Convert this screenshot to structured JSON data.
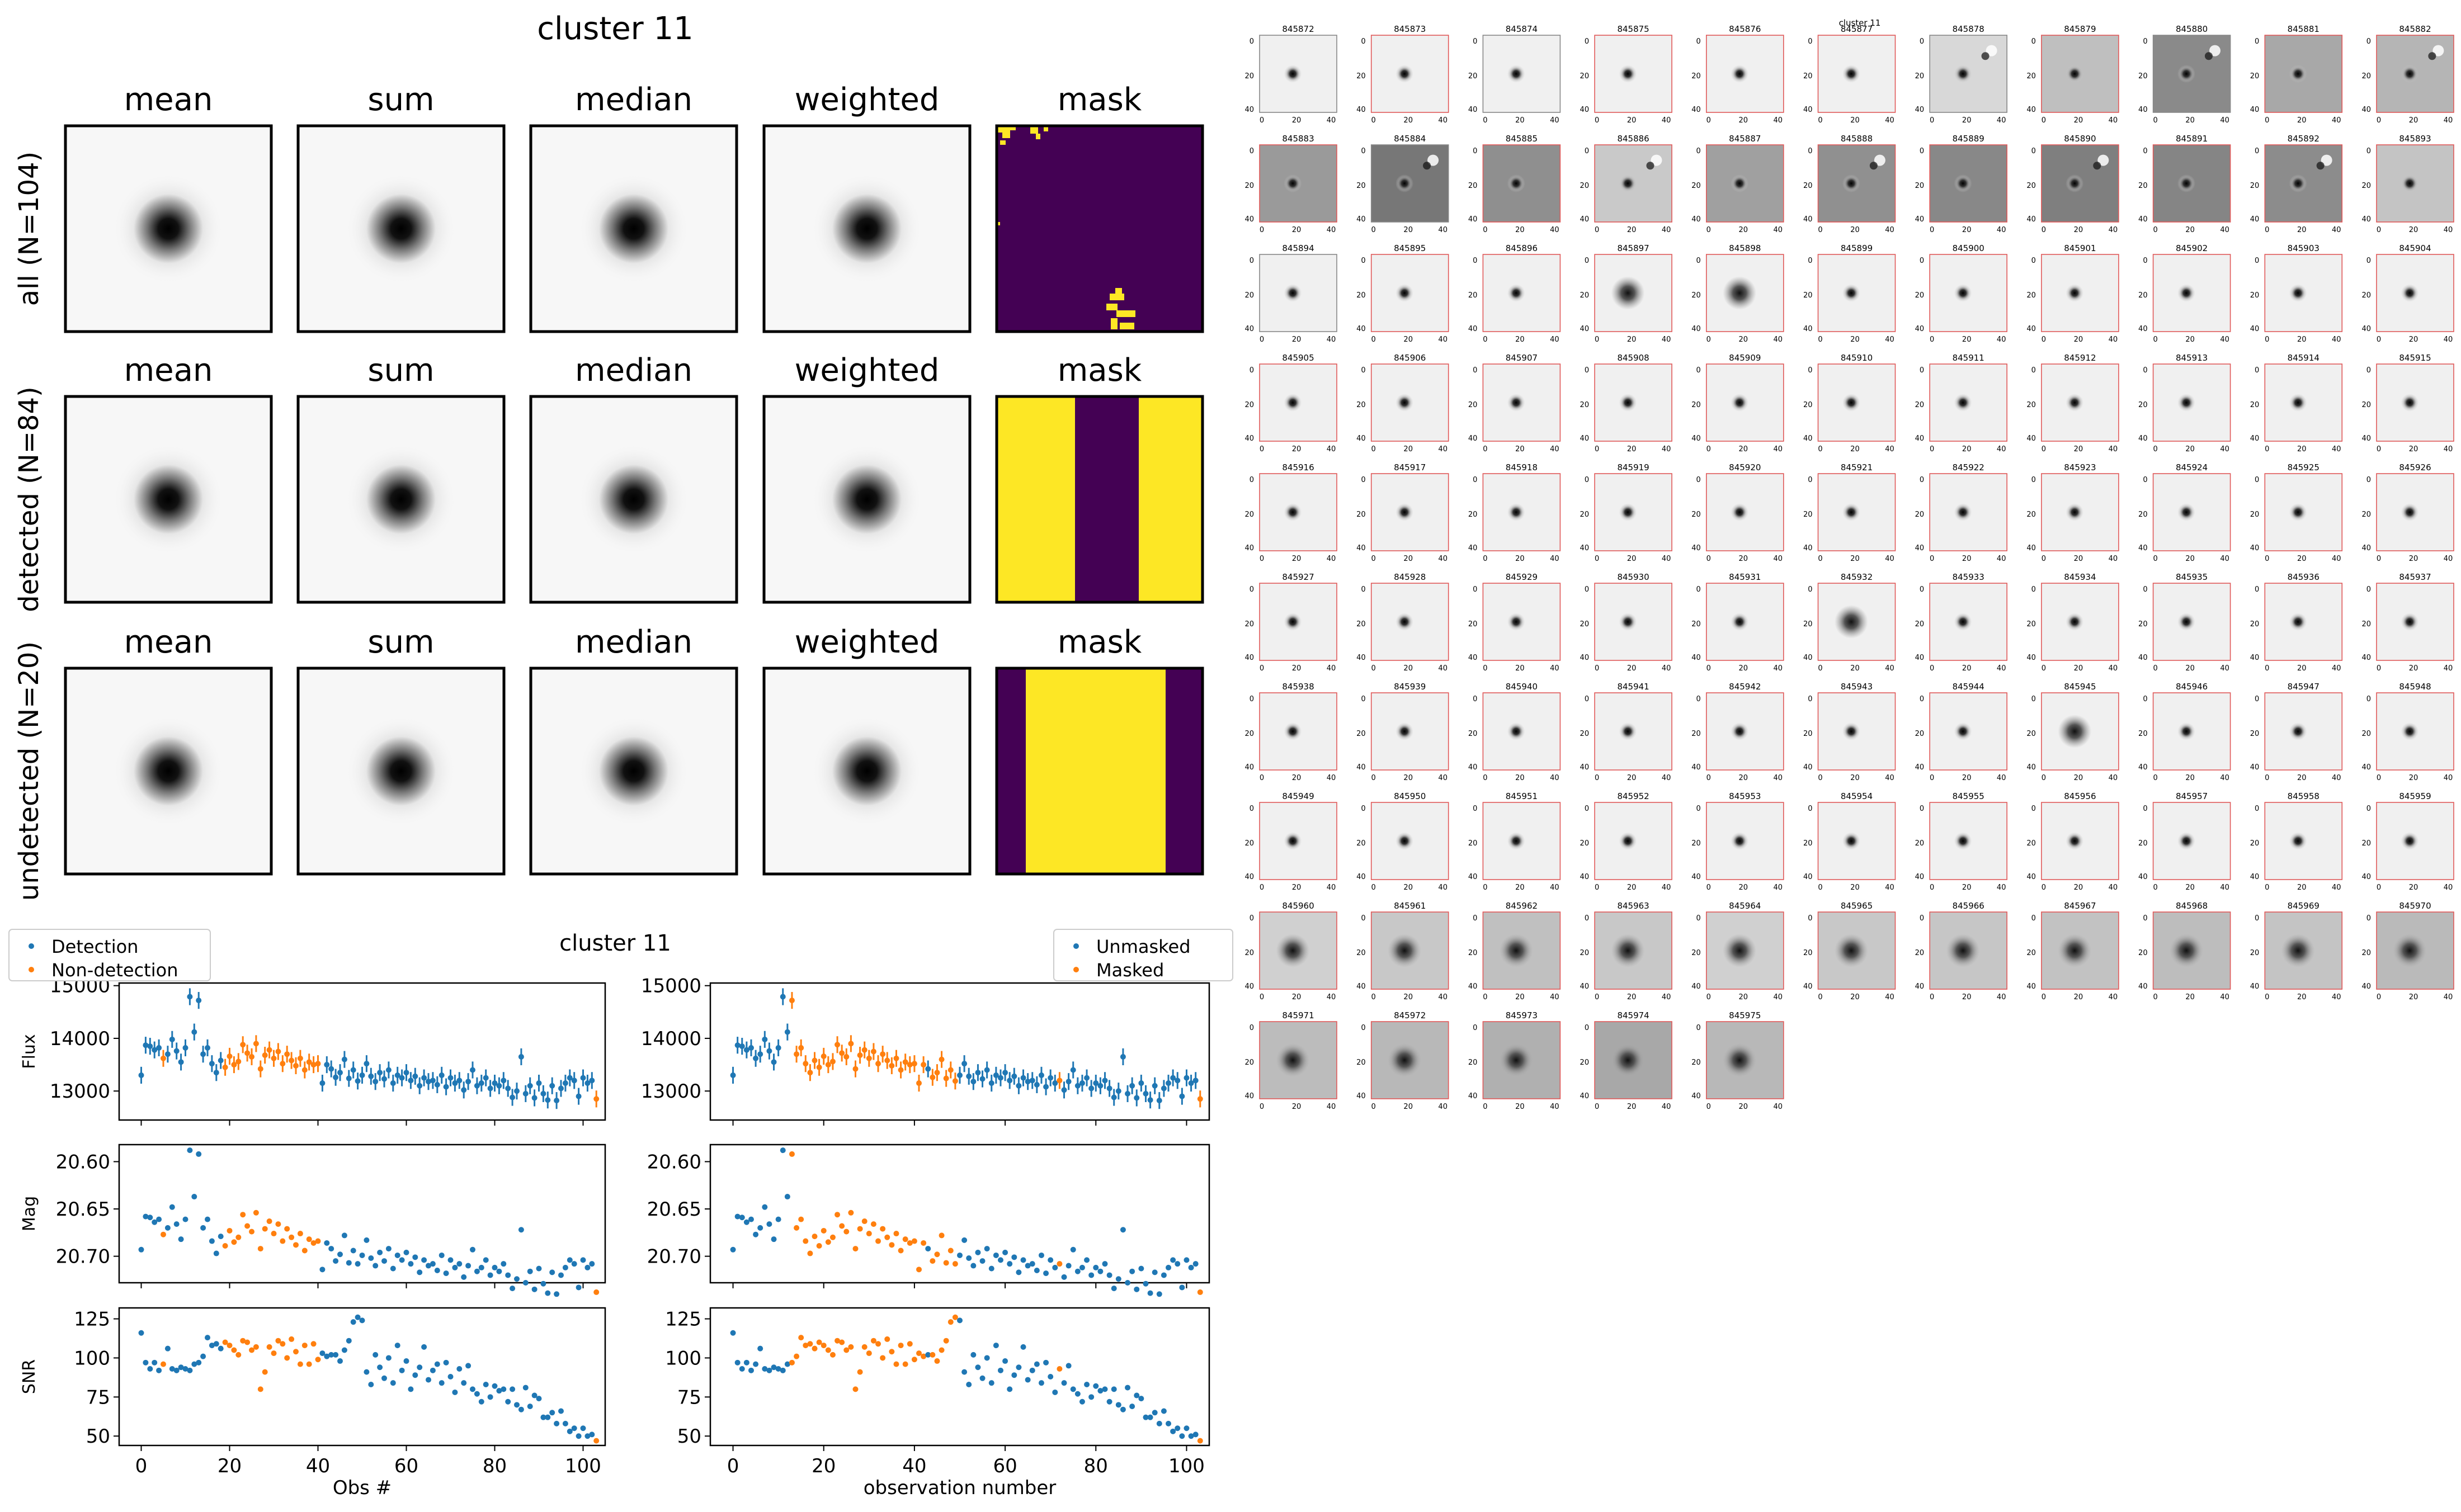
{
  "stacks": {
    "title": "cluster 11",
    "column_labels": [
      "mean",
      "sum",
      "median",
      "weighted",
      "mask"
    ],
    "row_labels": [
      "all (N=104)",
      "detected (N=84)",
      "undetected (N=20)"
    ]
  },
  "lightcurve": {
    "title": "cluster 11",
    "legend_left": [
      "Detection",
      "Non-detection"
    ],
    "legend_right": [
      "Unmasked",
      "Masked"
    ],
    "xlabel_left": "Obs #",
    "xlabel_right": "observation number",
    "ylabels": [
      "Flux",
      "Mag",
      "SNR"
    ]
  },
  "cutouts": {
    "header_label": "cluster 11",
    "ids": [
      "845872",
      "845873",
      "845874",
      "845875",
      "845876",
      "845877",
      "845878",
      "845879",
      "845880",
      "845881",
      "845882",
      "845883",
      "845884",
      "845885",
      "845886",
      "845887",
      "845888",
      "845889",
      "845890",
      "845891",
      "845892",
      "845893",
      "845894",
      "845895",
      "845896",
      "845897",
      "845898",
      "845899",
      "845900",
      "845901",
      "845902",
      "845903",
      "845904",
      "845905",
      "845906",
      "845907",
      "845908",
      "845909",
      "845910",
      "845911",
      "845912",
      "845913",
      "845914",
      "845915",
      "845916",
      "845917",
      "845918",
      "845919",
      "845920",
      "845921",
      "845922",
      "845923",
      "845924",
      "845925",
      "845926",
      "845927",
      "845928",
      "845929",
      "845930",
      "845931",
      "845932",
      "845933",
      "845934",
      "845935",
      "845936",
      "845937",
      "845938",
      "845939",
      "845940",
      "845941",
      "845942",
      "845943",
      "845944",
      "845945",
      "845946",
      "845947",
      "845948",
      "845949",
      "845950",
      "845951",
      "845952",
      "845953",
      "845954",
      "845955",
      "845956",
      "845957",
      "845958",
      "845959",
      "845960",
      "845961",
      "845962",
      "845963",
      "845964",
      "845965",
      "845966",
      "845967",
      "845968",
      "845969",
      "845970",
      "845971",
      "845972",
      "845973",
      "845974",
      "845975"
    ],
    "axis_ticks": [
      "0",
      "20",
      "40"
    ]
  },
  "chart_data": [
    {
      "type": "scatter",
      "title": "cluster 11",
      "ylabel": "Flux",
      "xlabel": "Obs #",
      "xlim": [
        -5,
        105
      ],
      "ylim": [
        12450,
        15050
      ],
      "yticks": [
        13000,
        14000,
        15000
      ],
      "xticks": [
        0,
        20,
        40,
        60,
        80,
        100
      ],
      "legend": [
        "Detection",
        "Non-detection"
      ],
      "x_orange_detected_split": [
        5,
        19,
        20,
        21,
        22,
        23,
        24,
        25,
        26,
        27,
        28,
        29,
        30,
        31,
        32,
        33,
        34,
        35,
        36,
        37,
        38,
        39,
        40,
        103
      ],
      "x_orange_masked_split": [
        13,
        14,
        15,
        16,
        17,
        18,
        19,
        20,
        21,
        22,
        23,
        24,
        25,
        26,
        27,
        28,
        29,
        30,
        31,
        32,
        33,
        34,
        35,
        36,
        37,
        38,
        39,
        40,
        41,
        42,
        44,
        45,
        46,
        47,
        48,
        49,
        72,
        103
      ],
      "x": [
        0,
        1,
        2,
        3,
        4,
        5,
        6,
        7,
        8,
        9,
        10,
        11,
        12,
        13,
        14,
        15,
        16,
        17,
        18,
        19,
        20,
        21,
        22,
        23,
        24,
        25,
        26,
        27,
        28,
        29,
        30,
        31,
        32,
        33,
        34,
        35,
        36,
        37,
        38,
        39,
        40,
        41,
        42,
        43,
        44,
        45,
        46,
        47,
        48,
        49,
        50,
        51,
        52,
        53,
        54,
        55,
        56,
        57,
        58,
        59,
        60,
        61,
        62,
        63,
        64,
        65,
        66,
        67,
        68,
        69,
        70,
        71,
        72,
        73,
        74,
        75,
        76,
        77,
        78,
        79,
        80,
        81,
        82,
        83,
        84,
        85,
        86,
        87,
        88,
        89,
        90,
        91,
        92,
        93,
        94,
        95,
        96,
        97,
        98,
        99,
        100,
        101,
        102,
        103
      ],
      "values": [
        13300,
        13870,
        13850,
        13780,
        13820,
        13620,
        13700,
        13980,
        13760,
        13550,
        13820,
        14790,
        14120,
        14720,
        13700,
        13820,
        13520,
        13350,
        13580,
        13450,
        13660,
        13500,
        13560,
        13880,
        13720,
        13650,
        13900,
        13420,
        13680,
        13780,
        13620,
        13750,
        13520,
        13700,
        13580,
        13480,
        13620,
        13400,
        13550,
        13500,
        13520,
        13150,
        13500,
        13420,
        13260,
        13350,
        13600,
        13240,
        13400,
        13190,
        13300,
        13520,
        13280,
        13180,
        13350,
        13230,
        13400,
        13150,
        13300,
        13250,
        13350,
        13200,
        13280,
        13100,
        13250,
        13180,
        13200,
        13120,
        13300,
        13080,
        13250,
        13150,
        13200,
        13020,
        13180,
        13400,
        13100,
        13150,
        13250,
        13050,
        13150,
        13100,
        13200,
        13050,
        12880,
        13000,
        13650,
        12950,
        13100,
        12870,
        13150,
        12950,
        12830,
        13100,
        12820,
        13050,
        13150,
        13250,
        13200,
        12900,
        13250,
        13150,
        13200,
        12850
      ],
      "errors": 160
    },
    {
      "type": "scatter",
      "ylabel": "Mag",
      "xlim": [
        -5,
        105
      ],
      "ylim": [
        20.728,
        20.582
      ],
      "yticks": [
        20.6,
        20.65,
        20.7
      ],
      "xticks": [
        0,
        20,
        40,
        60,
        80,
        100
      ],
      "x": [
        0,
        1,
        2,
        3,
        4,
        5,
        6,
        7,
        8,
        9,
        10,
        11,
        12,
        13,
        14,
        15,
        16,
        17,
        18,
        19,
        20,
        21,
        22,
        23,
        24,
        25,
        26,
        27,
        28,
        29,
        30,
        31,
        32,
        33,
        34,
        35,
        36,
        37,
        38,
        39,
        40,
        41,
        42,
        43,
        44,
        45,
        46,
        47,
        48,
        49,
        50,
        51,
        52,
        53,
        54,
        55,
        56,
        57,
        58,
        59,
        60,
        61,
        62,
        63,
        64,
        65,
        66,
        67,
        68,
        69,
        70,
        71,
        72,
        73,
        74,
        75,
        76,
        77,
        78,
        79,
        80,
        81,
        82,
        83,
        84,
        85,
        86,
        87,
        88,
        89,
        90,
        91,
        92,
        93,
        94,
        95,
        96,
        97,
        98,
        99,
        100,
        101,
        102,
        103
      ],
      "values": [
        20.693,
        20.658,
        20.659,
        20.664,
        20.661,
        20.677,
        20.67,
        20.648,
        20.666,
        20.682,
        20.661,
        20.588,
        20.637,
        20.592,
        20.67,
        20.661,
        20.684,
        20.697,
        20.679,
        20.689,
        20.673,
        20.685,
        20.68,
        20.656,
        20.668,
        20.674,
        20.654,
        20.692,
        20.671,
        20.663,
        20.676,
        20.666,
        20.684,
        20.671,
        20.68,
        20.688,
        20.676,
        20.694,
        20.682,
        20.686,
        20.684,
        20.714,
        20.686,
        20.692,
        20.705,
        20.698,
        20.678,
        20.707,
        20.694,
        20.708,
        20.699,
        20.683,
        20.702,
        20.71,
        20.696,
        20.705,
        20.692,
        20.713,
        20.699,
        20.704,
        20.696,
        20.708,
        20.701,
        20.717,
        20.704,
        20.71,
        20.708,
        20.715,
        20.699,
        20.718,
        20.704,
        20.712,
        20.708,
        20.722,
        20.71,
        20.693,
        20.716,
        20.712,
        20.704,
        20.72,
        20.712,
        20.716,
        20.708,
        20.72,
        20.734,
        20.724,
        20.672,
        20.728,
        20.716,
        20.735,
        20.713,
        20.729,
        20.739,
        20.717,
        20.74,
        20.72,
        20.712,
        20.704,
        20.708,
        20.733,
        20.704,
        20.712,
        20.708,
        20.738
      ],
      "note": "inverted magnitude axis"
    },
    {
      "type": "scatter",
      "ylabel": "SNR",
      "xlim": [
        -5,
        105
      ],
      "ylim": [
        44,
        132
      ],
      "yticks": [
        50,
        75,
        100,
        125
      ],
      "xticks": [
        0,
        20,
        40,
        60,
        80,
        100
      ],
      "x": [
        0,
        1,
        2,
        3,
        4,
        5,
        6,
        7,
        8,
        9,
        10,
        11,
        12,
        13,
        14,
        15,
        16,
        17,
        18,
        19,
        20,
        21,
        22,
        23,
        24,
        25,
        26,
        27,
        28,
        29,
        30,
        31,
        32,
        33,
        34,
        35,
        36,
        37,
        38,
        39,
        40,
        41,
        42,
        43,
        44,
        45,
        46,
        47,
        48,
        49,
        50,
        51,
        52,
        53,
        54,
        55,
        56,
        57,
        58,
        59,
        60,
        61,
        62,
        63,
        64,
        65,
        66,
        67,
        68,
        69,
        70,
        71,
        72,
        73,
        74,
        75,
        76,
        77,
        78,
        79,
        80,
        81,
        82,
        83,
        84,
        85,
        86,
        87,
        88,
        89,
        90,
        91,
        92,
        93,
        94,
        95,
        96,
        97,
        98,
        99,
        100,
        101,
        102,
        103
      ],
      "values": [
        116,
        97,
        93,
        97,
        92,
        96,
        106,
        93,
        92,
        94,
        93,
        92,
        96,
        97,
        101,
        113,
        108,
        109,
        106,
        110,
        108,
        105,
        102,
        111,
        110,
        105,
        107,
        80,
        91,
        107,
        103,
        111,
        109,
        100,
        112,
        104,
        96,
        108,
        96,
        109,
        99,
        103,
        101,
        102,
        102,
        98,
        105,
        111,
        123,
        126,
        124,
        91,
        83,
        102,
        94,
        87,
        100,
        84,
        108,
        92,
        98,
        80,
        89,
        94,
        107,
        86,
        92,
        96,
        84,
        97,
        88,
        78,
        93,
        84,
        95,
        80,
        77,
        72,
        83,
        75,
        82,
        79,
        80,
        72,
        80,
        70,
        67,
        81,
        69,
        76,
        74,
        62,
        62,
        65,
        58,
        66,
        58,
        53,
        55,
        50,
        55,
        50,
        51,
        47
      ],
      "note": "blue = detection/unmasked, orange = non-detection/masked"
    }
  ]
}
